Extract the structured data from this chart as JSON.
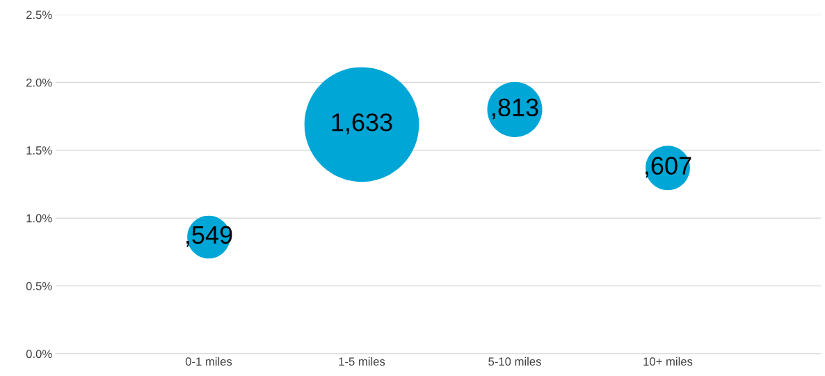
{
  "chart_data": {
    "type": "bubble",
    "categories": [
      "0-1 miles",
      "1-5 miles",
      "5-10 miles",
      "10+ miles"
    ],
    "series": [
      {
        "color": "#00a6d6",
        "values": [
          0.86,
          1.69,
          1.8,
          1.37
        ],
        "sizes": [
          0.14,
          1,
          0.23,
          0.15
        ]
      }
    ],
    "annotations": [
      {
        "text": ",549",
        "x": "0-1 miles",
        "y": 0.86
      },
      {
        "text": "1,633",
        "x": "1-5 miles",
        "y": 1.69
      },
      {
        "text": ",813",
        "x": "5-10 miles",
        "y": 1.8
      },
      {
        "text": ",607",
        "x": "10+ miles",
        "y": 1.37
      }
    ],
    "ylim": [
      0,
      2.5
    ],
    "yticks": [
      {
        "value": 0,
        "label": "0.0%"
      },
      {
        "value": 0.5,
        "label": "0.5%"
      },
      {
        "value": 1,
        "label": "1.0%"
      },
      {
        "value": 1.5,
        "label": "1.5%"
      },
      {
        "value": 2,
        "label": "2.0%"
      },
      {
        "value": 2.5,
        "label": "2.5%"
      }
    ],
    "grid": "y"
  }
}
